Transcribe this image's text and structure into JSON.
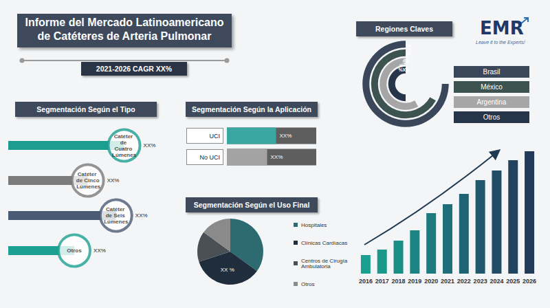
{
  "title": [
    "Informe del Mercado Latinoamericano",
    "de Catéteres de Arteria Pulmonar"
  ],
  "subtitle": "2021-2026 CAGR XX%",
  "logo": {
    "text": "EMR",
    "tagline": "Leave it to the Experts!"
  },
  "chart_data": [
    {
      "type": "radial_bar",
      "title": "Regiones Claves",
      "categories": [
        "Brasil",
        "México",
        "Argentina",
        "Otros"
      ],
      "values": [
        75,
        67,
        58,
        50
      ],
      "value_labels": [
        "XX%",
        "XX%",
        "XX%",
        "XX%"
      ],
      "colors": [
        "#3a475b",
        "#3c534f",
        "#a6a6a6",
        "#263549"
      ],
      "ylim": [
        0,
        100
      ],
      "data_labels": true,
      "legend": "right",
      "tick_labels": false
    },
    {
      "type": "bar",
      "orientation": "horizontal",
      "title": "Segmentación Según el Tipo",
      "categories": [
        "Catéter de Cuatro Lúmenes",
        "Catéter de Cinco Lúmenes",
        "Catéter de Seis Lúmenes",
        "Otros"
      ],
      "values": [
        86,
        59,
        80,
        49
      ],
      "value_labels": [
        "XX%",
        "XX%",
        "XX%",
        "XX%"
      ],
      "colors": [
        "#1b9e8f",
        "#7b7b7b",
        "#4b5a74",
        "#1ca091"
      ],
      "xlim": [
        0,
        100
      ],
      "marker": "circle",
      "data_labels": true,
      "tick_labels": false
    },
    {
      "type": "bar",
      "orientation": "horizontal",
      "title": "Segmentación Según la Aplicación",
      "categories": [
        "UCI",
        "No UCI"
      ],
      "values": [
        55,
        45
      ],
      "value_labels": [
        "XX%",
        "XX%"
      ],
      "colors": [
        "#3aa7a3",
        "#a3a3a3"
      ],
      "xlim": [
        0,
        100
      ],
      "data_labels": true,
      "tick_labels": "y"
    },
    {
      "type": "pie",
      "title": "Segmentación Según el Uso Final",
      "categories": [
        "Hospitales",
        "Clínicas Cardíacas",
        "Centros de Cirugía Ambulatoria",
        "Otros"
      ],
      "values": [
        35,
        35,
        15,
        15
      ],
      "value_labels": [
        null,
        "XX %",
        null,
        null
      ],
      "colors": [
        "#2e6b70",
        "#1f2d3d",
        "#4a5055",
        "#8a8a8a"
      ],
      "data_labels": true,
      "legend": "right"
    },
    {
      "type": "bar",
      "categories": [
        "2016",
        "2017",
        "2018",
        "2019",
        "2020",
        "2021",
        "2022",
        "2023",
        "2024",
        "2025",
        "2026"
      ],
      "values": [
        27,
        35,
        48,
        63,
        88,
        101,
        116,
        136,
        150,
        165,
        178
      ],
      "colors": [
        "#1aa090",
        "#1a9889",
        "#198f86",
        "#1c8482",
        "#1d7a7e",
        "#1e6f79",
        "#1f6474",
        "#20596d",
        "#214e66",
        "#22435f",
        "#233958"
      ],
      "ylim": [
        0,
        190
      ],
      "tick_labels": "x"
    }
  ]
}
